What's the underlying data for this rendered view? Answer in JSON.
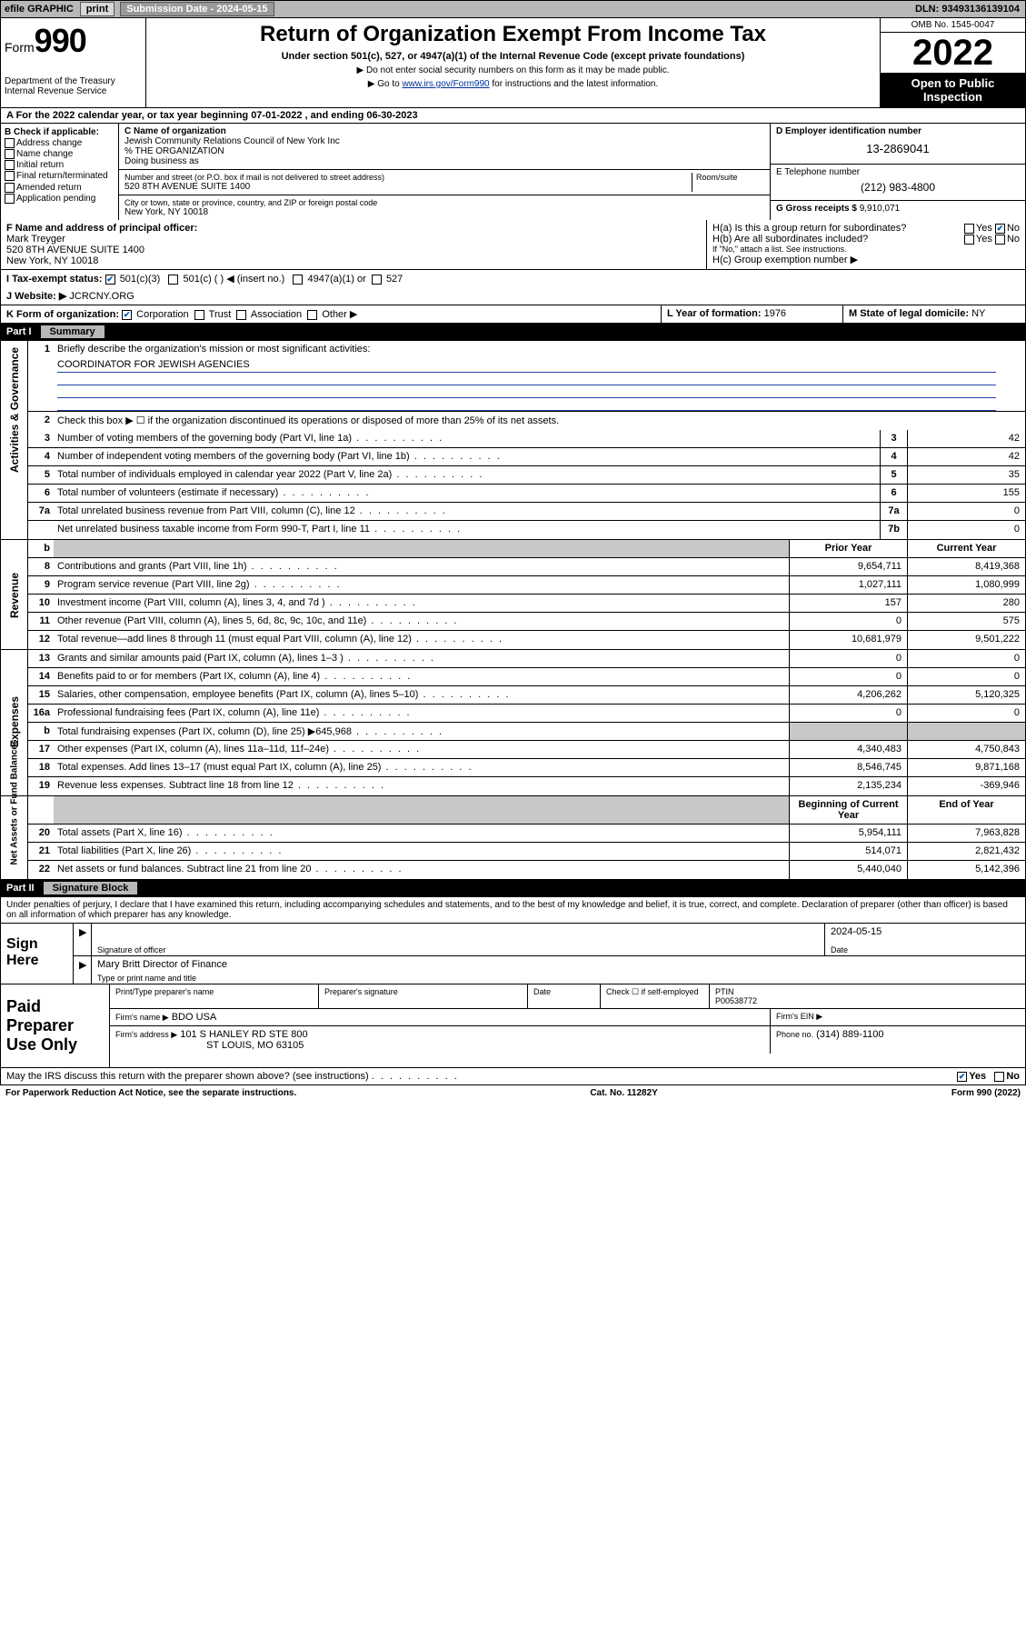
{
  "topbar": {
    "efile_label": "efile GRAPHIC",
    "print_btn": "print",
    "submission_label": "Submission Date - 2024-05-15",
    "dln": "DLN: 93493136139104"
  },
  "header": {
    "form_prefix": "Form",
    "form_number": "990",
    "dept": "Department of the Treasury Internal Revenue Service",
    "title": "Return of Organization Exempt From Income Tax",
    "subtitle": "Under section 501(c), 527, or 4947(a)(1) of the Internal Revenue Code (except private foundations)",
    "note1": "▶ Do not enter social security numbers on this form as it may be made public.",
    "note2_prefix": "▶ Go to ",
    "note2_link": "www.irs.gov/Form990",
    "note2_suffix": " for instructions and the latest information.",
    "omb": "OMB No. 1545-0047",
    "year": "2022",
    "open": "Open to Public Inspection"
  },
  "rowA": "A For the 2022 calendar year, or tax year beginning 07-01-2022   , and ending 06-30-2023",
  "B": {
    "heading": "B Check if applicable:",
    "items": [
      "Address change",
      "Name change",
      "Initial return",
      "Final return/terminated",
      "Amended return",
      "Application pending"
    ]
  },
  "C": {
    "name_label": "C Name of organization",
    "name": "Jewish Community Relations Council of New York Inc",
    "care_of": "% THE ORGANIZATION",
    "dba_label": "Doing business as",
    "addr_label": "Number and street (or P.O. box if mail is not delivered to street address)",
    "room_label": "Room/suite",
    "addr": "520 8TH AVENUE SUITE 1400",
    "city_label": "City or town, state or province, country, and ZIP or foreign postal code",
    "city": "New York, NY  10018"
  },
  "D": {
    "label": "D Employer identification number",
    "value": "13-2869041"
  },
  "E": {
    "label": "E Telephone number",
    "value": "(212) 983-4800"
  },
  "G": {
    "label": "G Gross receipts $",
    "value": "9,910,071"
  },
  "F": {
    "label": "F  Name and address of principal officer:",
    "name": "Mark Treyger",
    "addr1": "520 8TH AVENUE SUITE 1400",
    "addr2": "New York, NY  10018"
  },
  "H": {
    "ha": "H(a)  Is this a group return for subordinates?",
    "hb": "H(b)  Are all subordinates included?",
    "hb_note": "If \"No,\" attach a list. See instructions.",
    "hc": "H(c)  Group exemption number ▶",
    "yes": "Yes",
    "no": "No"
  },
  "I": {
    "label": "I    Tax-exempt status:",
    "opts": [
      "501(c)(3)",
      "501(c) (  ) ◀ (insert no.)",
      "4947(a)(1) or",
      "527"
    ]
  },
  "J": {
    "label": "J   Website: ▶",
    "value": "JCRCNY.ORG"
  },
  "K": {
    "label": "K Form of organization:",
    "opts": [
      "Corporation",
      "Trust",
      "Association",
      "Other ▶"
    ]
  },
  "L": {
    "label": "L Year of formation:",
    "value": "1976"
  },
  "M": {
    "label": "M State of legal domicile:",
    "value": "NY"
  },
  "part1": {
    "tag": "Part I",
    "title": "Summary",
    "sidelabels": [
      "Activities & Governance",
      "Revenue",
      "Expenses",
      "Net Assets or Fund Balances"
    ],
    "line1_label": "Briefly describe the organization's mission or most significant activities:",
    "line1_value": "COORDINATOR FOR JEWISH AGENCIES",
    "line2": "Check this box ▶ ☐  if the organization discontinued its operations or disposed of more than 25% of its net assets.",
    "rows_gov": [
      {
        "n": "3",
        "d": "Number of voting members of the governing body (Part VI, line 1a)",
        "b": "3",
        "v": "42"
      },
      {
        "n": "4",
        "d": "Number of independent voting members of the governing body (Part VI, line 1b)",
        "b": "4",
        "v": "42"
      },
      {
        "n": "5",
        "d": "Total number of individuals employed in calendar year 2022 (Part V, line 2a)",
        "b": "5",
        "v": "35"
      },
      {
        "n": "6",
        "d": "Total number of volunteers (estimate if necessary)",
        "b": "6",
        "v": "155"
      },
      {
        "n": "7a",
        "d": "Total unrelated business revenue from Part VIII, column (C), line 12",
        "b": "7a",
        "v": "0"
      },
      {
        "n": "",
        "d": "Net unrelated business taxable income from Form 990-T, Part I, line 11",
        "b": "7b",
        "v": "0"
      }
    ],
    "col_headers": {
      "b": "b",
      "prior": "Prior Year",
      "current": "Current Year"
    },
    "rows_rev": [
      {
        "n": "8",
        "d": "Contributions and grants (Part VIII, line 1h)",
        "p": "9,654,711",
        "c": "8,419,368"
      },
      {
        "n": "9",
        "d": "Program service revenue (Part VIII, line 2g)",
        "p": "1,027,111",
        "c": "1,080,999"
      },
      {
        "n": "10",
        "d": "Investment income (Part VIII, column (A), lines 3, 4, and 7d )",
        "p": "157",
        "c": "280"
      },
      {
        "n": "11",
        "d": "Other revenue (Part VIII, column (A), lines 5, 6d, 8c, 9c, 10c, and 11e)",
        "p": "0",
        "c": "575"
      },
      {
        "n": "12",
        "d": "Total revenue—add lines 8 through 11 (must equal Part VIII, column (A), line 12)",
        "p": "10,681,979",
        "c": "9,501,222"
      }
    ],
    "rows_exp": [
      {
        "n": "13",
        "d": "Grants and similar amounts paid (Part IX, column (A), lines 1–3 )",
        "p": "0",
        "c": "0"
      },
      {
        "n": "14",
        "d": "Benefits paid to or for members (Part IX, column (A), line 4)",
        "p": "0",
        "c": "0"
      },
      {
        "n": "15",
        "d": "Salaries, other compensation, employee benefits (Part IX, column (A), lines 5–10)",
        "p": "4,206,262",
        "c": "5,120,325"
      },
      {
        "n": "16a",
        "d": "Professional fundraising fees (Part IX, column (A), line 11e)",
        "p": "0",
        "c": "0"
      },
      {
        "n": "b",
        "d": "Total fundraising expenses (Part IX, column (D), line 25) ▶645,968",
        "p": "",
        "c": "",
        "shade": true
      },
      {
        "n": "17",
        "d": "Other expenses (Part IX, column (A), lines 11a–11d, 11f–24e)",
        "p": "4,340,483",
        "c": "4,750,843"
      },
      {
        "n": "18",
        "d": "Total expenses. Add lines 13–17 (must equal Part IX, column (A), line 25)",
        "p": "8,546,745",
        "c": "9,871,168"
      },
      {
        "n": "19",
        "d": "Revenue less expenses. Subtract line 18 from line 12",
        "p": "2,135,234",
        "c": "-369,946"
      }
    ],
    "net_headers": {
      "beg": "Beginning of Current Year",
      "end": "End of Year"
    },
    "rows_net": [
      {
        "n": "20",
        "d": "Total assets (Part X, line 16)",
        "p": "5,954,111",
        "c": "7,963,828"
      },
      {
        "n": "21",
        "d": "Total liabilities (Part X, line 26)",
        "p": "514,071",
        "c": "2,821,432"
      },
      {
        "n": "22",
        "d": "Net assets or fund balances. Subtract line 21 from line 20",
        "p": "5,440,040",
        "c": "5,142,396"
      }
    ]
  },
  "part2": {
    "tag": "Part II",
    "title": "Signature Block",
    "declaration": "Under penalties of perjury, I declare that I have examined this return, including accompanying schedules and statements, and to the best of my knowledge and belief, it is true, correct, and complete. Declaration of preparer (other than officer) is based on all information of which preparer has any knowledge.",
    "sign_here": "Sign Here",
    "sig_officer_label": "Signature of officer",
    "sig_date": "2024-05-15",
    "date_label": "Date",
    "officer_name": "Mary Britt  Director of Finance",
    "officer_name_label": "Type or print name and title",
    "paid_label": "Paid Preparer Use Only",
    "preparer_cols": [
      "Print/Type preparer's name",
      "Preparer's signature",
      "Date"
    ],
    "check_if": "Check ☐ if self-employed",
    "ptin_label": "PTIN",
    "ptin": "P00538772",
    "firm_name_label": "Firm's name   ▶",
    "firm_name": "BDO USA",
    "firm_ein_label": "Firm's EIN ▶",
    "firm_addr_label": "Firm's address ▶",
    "firm_addr1": "101 S HANLEY RD STE 800",
    "firm_addr2": "ST LOUIS, MO  63105",
    "phone_label": "Phone no.",
    "phone": "(314) 889-1100",
    "discuss": "May the IRS discuss this return with the preparer shown above? (see instructions)",
    "yes": "Yes",
    "no": "No"
  },
  "footer": {
    "left": "For Paperwork Reduction Act Notice, see the separate instructions.",
    "mid": "Cat. No. 11282Y",
    "right_prefix": "Form ",
    "right_form": "990",
    "right_suffix": " (2022)"
  }
}
